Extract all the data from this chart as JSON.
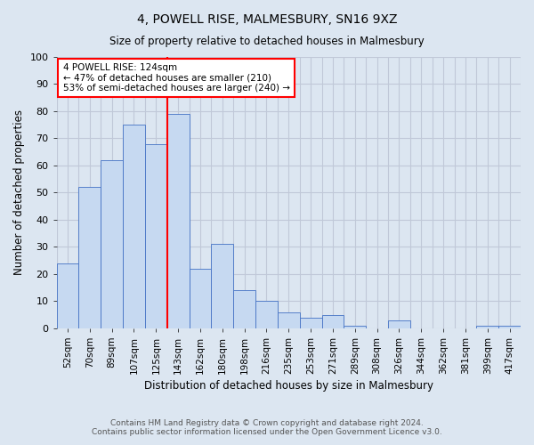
{
  "title1": "4, POWELL RISE, MALMESBURY, SN16 9XZ",
  "title2": "Size of property relative to detached houses in Malmesbury",
  "xlabel": "Distribution of detached houses by size in Malmesbury",
  "ylabel": "Number of detached properties",
  "categories": [
    "52sqm",
    "70sqm",
    "89sqm",
    "107sqm",
    "125sqm",
    "143sqm",
    "162sqm",
    "180sqm",
    "198sqm",
    "216sqm",
    "235sqm",
    "253sqm",
    "271sqm",
    "289sqm",
    "308sqm",
    "326sqm",
    "344sqm",
    "362sqm",
    "381sqm",
    "399sqm",
    "417sqm"
  ],
  "values": [
    24,
    52,
    62,
    75,
    68,
    79,
    22,
    31,
    14,
    10,
    6,
    4,
    5,
    1,
    0,
    3,
    0,
    0,
    0,
    1,
    1
  ],
  "bar_color": "#c6d9f1",
  "bar_edge_color": "#4472c4",
  "grid_color": "#c0c8d8",
  "background_color": "#dce6f1",
  "vline_x_index": 4,
  "annotation_text": "4 POWELL RISE: 124sqm\n← 47% of detached houses are smaller (210)\n53% of semi-detached houses are larger (240) →",
  "annotation_box_color": "white",
  "annotation_box_edge_color": "red",
  "vline_color": "red",
  "ylim": [
    0,
    100
  ],
  "yticks": [
    0,
    10,
    20,
    30,
    40,
    50,
    60,
    70,
    80,
    90,
    100
  ],
  "footer": "Contains HM Land Registry data © Crown copyright and database right 2024.\nContains public sector information licensed under the Open Government Licence v3.0."
}
